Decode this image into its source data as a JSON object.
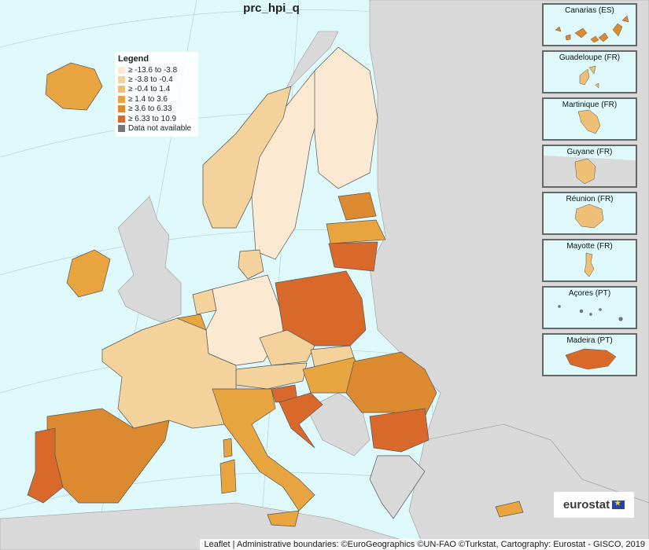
{
  "title": "prc_hpi_q",
  "legend": {
    "heading": "Legend",
    "items": [
      {
        "label": "≥ -13.6 to -3.8",
        "color": "#fbe9d1"
      },
      {
        "label": "≥ -3.8 to -0.4",
        "color": "#f3d29b"
      },
      {
        "label": "≥ -0.4 to 1.4",
        "color": "#eebf74"
      },
      {
        "label": "≥ 1.4 to 3.6",
        "color": "#e8a53f"
      },
      {
        "label": "≥ 3.6 to 6.33",
        "color": "#db8a2f"
      },
      {
        "label": "≥ 6.33 to 10.9",
        "color": "#d8692b"
      },
      {
        "label": "Data not available",
        "color": "#777777"
      }
    ]
  },
  "insets": [
    {
      "label": "Canarias (ES)"
    },
    {
      "label": "Guadeloupe (FR)"
    },
    {
      "label": "Martinique (FR)"
    },
    {
      "label": "Guyane (FR)"
    },
    {
      "label": "Réunion (FR)"
    },
    {
      "label": "Mayotte (FR)"
    },
    {
      "label": "Açores (PT)"
    },
    {
      "label": "Madeira (PT)"
    }
  ],
  "logo": {
    "text": "eurostat"
  },
  "attribution": "Leaflet | Administrative boundaries: ©EuroGeographics ©UN-FAO ©Turkstat, Cartography: Eurostat - GISCO, 2019",
  "colors": {
    "sea": "#dff8fa",
    "non_eu": "#d9d9d9",
    "border": "#555555"
  }
}
